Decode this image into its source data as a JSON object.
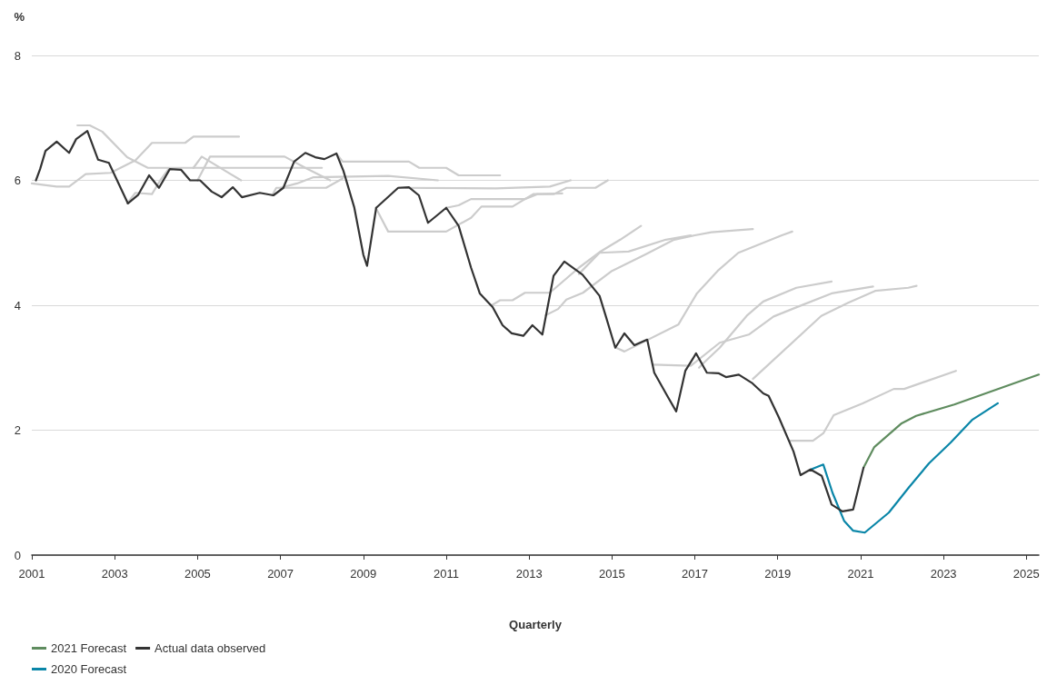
{
  "chart_data": {
    "type": "line",
    "ylabel": "%",
    "xlabel": "Quarterly",
    "xlim": [
      2001,
      2025.3
    ],
    "xticks": [
      2001,
      2003,
      2005,
      2007,
      2009,
      2011,
      2013,
      2015,
      2017,
      2019,
      2021,
      2023,
      2025
    ],
    "ylim": [
      0,
      8
    ],
    "yticks": [
      0,
      2,
      4,
      6,
      8
    ],
    "grid": "y",
    "legend": "bottom left",
    "marker": "none",
    "line_style": "solid",
    "series": [
      {
        "color": "#cccccc",
        "x": [
          2001.0,
          2001.6,
          2001.9,
          2002.3,
          2002.9,
          2003.5,
          2003.9,
          2004.7,
          2004.9,
          2006.0
        ],
        "values": [
          5.95,
          5.9,
          5.9,
          6.1,
          6.12,
          6.32,
          6.6,
          6.6,
          6.7,
          6.7
        ]
      },
      {
        "color": "#cccccc",
        "x": [
          2002.1,
          2002.4,
          2002.7,
          2003.3,
          2003.8,
          2007.2,
          2008.0
        ],
        "values": [
          6.88,
          6.88,
          6.78,
          6.37,
          6.2,
          6.2,
          6.2
        ]
      },
      {
        "color": "#cccccc",
        "x": [
          2003.3,
          2003.5,
          2003.9,
          2004.1,
          2004.3
        ],
        "values": [
          5.63,
          5.8,
          5.78,
          6.0,
          6.18
        ]
      },
      {
        "color": "#cccccc",
        "x": [
          2004.9,
          2005.1,
          2006.05
        ],
        "values": [
          6.2,
          6.38,
          6.0
        ]
      },
      {
        "color": "#cccccc",
        "x": [
          2005.0,
          2005.3,
          2007.1,
          2007.6,
          2008.2
        ],
        "values": [
          6.0,
          6.38,
          6.38,
          6.2,
          6.0
        ]
      },
      {
        "color": "#cccccc",
        "x": [
          2006.8,
          2006.9,
          2008.1,
          2008.5
        ],
        "values": [
          5.76,
          5.88,
          5.88,
          6.03
        ]
      },
      {
        "color": "#cccccc",
        "x": [
          2007.0,
          2007.4,
          2007.8,
          2009.6,
          2010.8
        ],
        "values": [
          5.88,
          5.95,
          6.05,
          6.07,
          6.0
        ]
      },
      {
        "color": "#cccccc",
        "x": [
          2008.35,
          2008.5,
          2010.1,
          2010.35,
          2011.0,
          2011.3,
          2012.3
        ],
        "values": [
          6.43,
          6.3,
          6.3,
          6.2,
          6.2,
          6.08,
          6.08
        ]
      },
      {
        "color": "#cccccc",
        "x": [
          2009.85,
          2012.2,
          2013.5,
          2014.0
        ],
        "values": [
          5.88,
          5.87,
          5.9,
          6.0
        ]
      },
      {
        "color": "#cccccc",
        "x": [
          2009.3,
          2009.6,
          2011.0,
          2011.6,
          2011.85,
          2012.6,
          2013.1,
          2013.6,
          2013.9,
          2014.6,
          2014.9
        ],
        "values": [
          5.56,
          5.18,
          5.18,
          5.4,
          5.58,
          5.58,
          5.78,
          5.78,
          5.88,
          5.88,
          6.0
        ]
      },
      {
        "color": "#cccccc",
        "x": [
          2011.0,
          2011.3,
          2011.6,
          2012.9,
          2013.2,
          2013.8
        ],
        "values": [
          5.56,
          5.6,
          5.7,
          5.7,
          5.78,
          5.79
        ]
      },
      {
        "color": "#cccccc",
        "x": [
          2012.1,
          2012.3,
          2012.6,
          2012.9,
          2013.5,
          2014.2,
          2014.7,
          2015.2,
          2015.7
        ],
        "values": [
          4.0,
          4.08,
          4.08,
          4.2,
          4.2,
          4.6,
          4.85,
          5.05,
          5.27
        ]
      },
      {
        "color": "#cccccc",
        "x": [
          2013.4,
          2013.7,
          2013.9,
          2014.3,
          2015.0,
          2015.8,
          2016.5,
          2017.0,
          2017.4,
          2018.4
        ],
        "values": [
          3.84,
          3.94,
          4.09,
          4.2,
          4.55,
          4.81,
          5.05,
          5.12,
          5.17,
          5.22
        ]
      },
      {
        "color": "#cccccc",
        "x": [
          2014.2,
          2014.7,
          2015.4,
          2016.3,
          2016.9
        ],
        "values": [
          4.5,
          4.84,
          4.86,
          5.05,
          5.12
        ]
      },
      {
        "color": "#cccccc",
        "x": [
          2015.1,
          2015.3,
          2016.6,
          2017.05,
          2017.55,
          2018.05,
          2019.1,
          2019.35
        ],
        "values": [
          3.32,
          3.26,
          3.69,
          4.19,
          4.55,
          4.84,
          5.12,
          5.18
        ]
      },
      {
        "color": "#cccccc",
        "x": [
          2016.0,
          2016.9,
          2017.6,
          2018.3,
          2018.9,
          2019.5,
          2020.3,
          2021.3
        ],
        "values": [
          3.05,
          3.03,
          3.4,
          3.53,
          3.82,
          3.98,
          4.19,
          4.3
        ]
      },
      {
        "color": "#cccccc",
        "x": [
          2017.1,
          2017.2,
          2017.6,
          2018.25,
          2018.65,
          2019.45,
          2020.3
        ],
        "values": [
          3.0,
          3.07,
          3.32,
          3.83,
          4.06,
          4.28,
          4.38
        ]
      },
      {
        "color": "#cccccc",
        "x": [
          2018.4,
          2020.05,
          2020.7,
          2021.35,
          2022.15,
          2022.35
        ],
        "values": [
          2.82,
          3.83,
          4.04,
          4.23,
          4.28,
          4.31
        ]
      },
      {
        "color": "#cccccc",
        "x": [
          2019.3,
          2019.85,
          2020.1,
          2020.35,
          2021.05,
          2021.8,
          2022.05,
          2023.3
        ],
        "values": [
          1.83,
          1.83,
          1.95,
          2.24,
          2.43,
          2.66,
          2.66,
          2.95
        ]
      },
      {
        "name": "2021 Forecast",
        "color": "#5f8c5f",
        "x": [
          2021.07,
          2021.33,
          2021.99,
          2022.34,
          2023.26,
          2025.3
        ],
        "values": [
          1.4,
          1.73,
          2.11,
          2.23,
          2.41,
          2.89
        ]
      },
      {
        "name": "2020 Forecast",
        "color": "#0a86a8",
        "x": [
          2019.8,
          2020.1,
          2020.32,
          2020.6,
          2020.82,
          2021.1,
          2021.68,
          2022.16,
          2022.65,
          2023.17,
          2023.7,
          2024.31
        ],
        "values": [
          1.37,
          1.45,
          1.0,
          0.55,
          0.39,
          0.36,
          0.68,
          1.08,
          1.47,
          1.8,
          2.17,
          2.43
        ]
      },
      {
        "name": "Actual data observed",
        "color": "#333333",
        "x": [
          2001.1,
          2001.2,
          2001.33,
          2001.6,
          2001.9,
          2002.07,
          2002.34,
          2002.6,
          2002.86,
          2003.32,
          2003.57,
          2003.83,
          2004.07,
          2004.33,
          2004.6,
          2004.82,
          2005.06,
          2005.34,
          2005.58,
          2005.85,
          2006.07,
          2006.5,
          2006.83,
          2007.07,
          2007.33,
          2007.6,
          2007.84,
          2008.06,
          2008.35,
          2008.52,
          2008.78,
          2009.0,
          2009.09,
          2009.31,
          2009.84,
          2010.1,
          2010.34,
          2010.56,
          2011.0,
          2011.3,
          2011.6,
          2011.81,
          2012.12,
          2012.36,
          2012.58,
          2012.86,
          2013.08,
          2013.32,
          2013.59,
          2013.85,
          2014.29,
          2014.7,
          2014.84,
          2015.08,
          2015.3,
          2015.54,
          2015.85,
          2016.02,
          2016.35,
          2016.55,
          2016.77,
          2017.03,
          2017.29,
          2017.58,
          2017.75,
          2018.06,
          2018.39,
          2018.65,
          2018.78,
          2019.03,
          2019.38,
          2019.55,
          2019.79,
          2020.06,
          2020.3,
          2020.56,
          2020.82,
          2021.07
        ],
        "values": [
          6.0,
          6.18,
          6.47,
          6.62,
          6.44,
          6.66,
          6.79,
          6.33,
          6.28,
          5.63,
          5.77,
          6.08,
          5.88,
          6.18,
          6.17,
          6.0,
          6.0,
          5.82,
          5.73,
          5.89,
          5.73,
          5.8,
          5.76,
          5.88,
          6.3,
          6.44,
          6.37,
          6.34,
          6.43,
          6.15,
          5.57,
          4.81,
          4.63,
          5.56,
          5.88,
          5.89,
          5.76,
          5.32,
          5.56,
          5.27,
          4.6,
          4.19,
          3.97,
          3.68,
          3.55,
          3.51,
          3.68,
          3.53,
          4.47,
          4.7,
          4.49,
          4.15,
          3.85,
          3.32,
          3.55,
          3.36,
          3.45,
          2.92,
          2.53,
          2.3,
          2.95,
          3.23,
          2.92,
          2.91,
          2.85,
          2.89,
          2.75,
          2.59,
          2.55,
          2.2,
          1.66,
          1.28,
          1.37,
          1.27,
          0.81,
          0.7,
          0.73,
          1.4
        ]
      }
    ]
  }
}
